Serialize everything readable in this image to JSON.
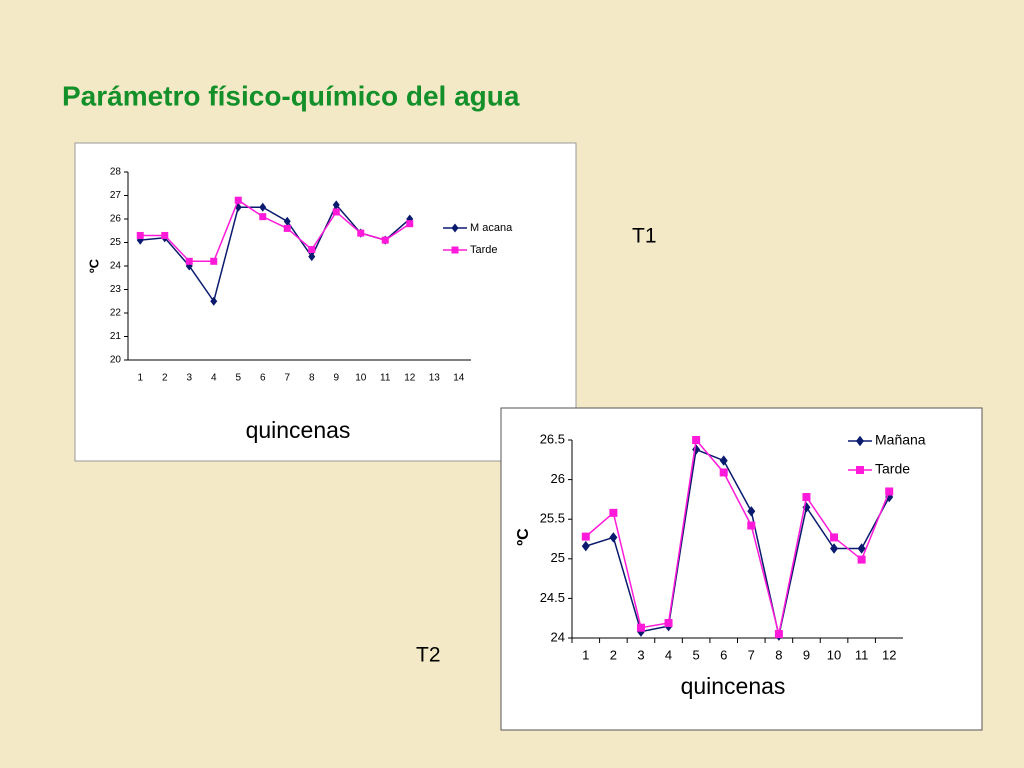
{
  "title": "Parámetro físico-químico del agua",
  "chart_data": [
    {
      "type": "line",
      "label": "T1",
      "ylabel": "ºC",
      "xlabel": "quincenas",
      "categories": [
        "1",
        "2",
        "3",
        "4",
        "5",
        "6",
        "7",
        "8",
        "9",
        "10",
        "11",
        "12",
        "13",
        "14"
      ],
      "ylim": [
        20,
        28
      ],
      "yticks": [
        20,
        21,
        22,
        23,
        24,
        25,
        26,
        27,
        28
      ],
      "series": [
        {
          "name": "M acana",
          "color": "#0a1a6e",
          "marker": "diamond",
          "values": [
            25.1,
            25.2,
            24.0,
            22.5,
            26.5,
            26.5,
            25.9,
            24.4,
            26.6,
            25.4,
            25.1,
            26.0,
            null,
            null
          ]
        },
        {
          "name": "Tarde",
          "color": "#ff1ad9",
          "marker": "square",
          "values": [
            25.3,
            25.3,
            24.2,
            24.2,
            26.8,
            26.1,
            25.6,
            24.7,
            26.3,
            25.4,
            25.1,
            25.8,
            null,
            null
          ]
        }
      ]
    },
    {
      "type": "line",
      "label": "T2",
      "ylabel": "ºC",
      "xlabel": "quincenas",
      "categories": [
        "1",
        "2",
        "3",
        "4",
        "5",
        "6",
        "7",
        "8",
        "9",
        "10",
        "11",
        "12"
      ],
      "ylim": [
        24,
        26.5
      ],
      "yticks": [
        24,
        24.5,
        25,
        25.5,
        26,
        26.5
      ],
      "series": [
        {
          "name": "Mañana",
          "color": "#0a1a6e",
          "marker": "diamond",
          "values": [
            25.16,
            25.27,
            24.08,
            24.15,
            26.38,
            26.24,
            25.6,
            24.03,
            25.65,
            25.13,
            25.13,
            25.78
          ]
        },
        {
          "name": "Tarde",
          "color": "#ff1ad9",
          "marker": "square",
          "values": [
            25.28,
            25.58,
            24.13,
            24.19,
            26.5,
            26.09,
            25.42,
            24.05,
            25.78,
            25.27,
            24.99,
            25.85
          ]
        }
      ]
    }
  ]
}
